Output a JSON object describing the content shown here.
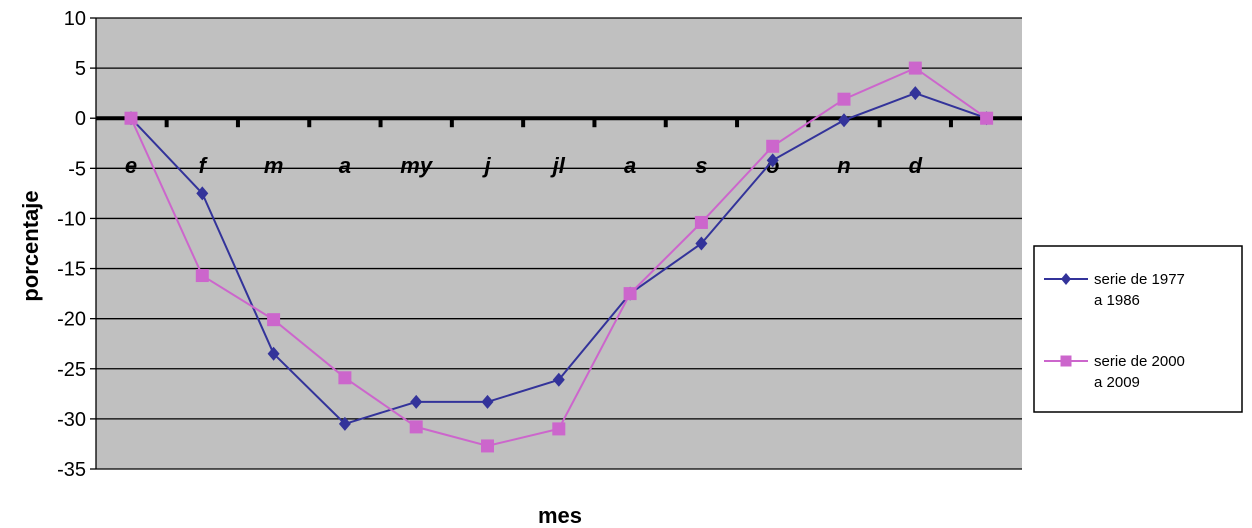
{
  "chart_data": {
    "type": "line",
    "title": "",
    "xlabel": "mes",
    "ylabel": "porcentaje",
    "ylim": [
      -35,
      10
    ],
    "yticks": [
      10,
      5,
      0,
      -5,
      -10,
      -15,
      -20,
      -25,
      -30,
      -35
    ],
    "categories": [
      "e",
      "f",
      "m",
      "a",
      "my",
      "j",
      "jl",
      "a",
      "s",
      "o",
      "n",
      "d",
      ""
    ],
    "grid": true,
    "plot_background": "#c0c0c0",
    "legend_position": "right",
    "series": [
      {
        "name": "serie de 1977 a 1986",
        "name_lines": [
          "serie de 1977",
          "a 1986"
        ],
        "color": "#33339a",
        "marker": "diamond",
        "values": [
          0,
          -7.5,
          -23.5,
          -30.5,
          -28.3,
          -28.3,
          -26.1,
          -17.5,
          -12.5,
          -4.2,
          -0.2,
          2.5,
          0
        ]
      },
      {
        "name": "serie de 2000 a 2009",
        "name_lines": [
          "serie de 2000",
          "a 2009"
        ],
        "color": "#cc66cc",
        "marker": "square",
        "values": [
          0,
          -15.7,
          -20.1,
          -25.9,
          -30.8,
          -32.7,
          -31.0,
          -17.5,
          -10.4,
          -2.8,
          1.9,
          5.0,
          0
        ]
      }
    ]
  }
}
